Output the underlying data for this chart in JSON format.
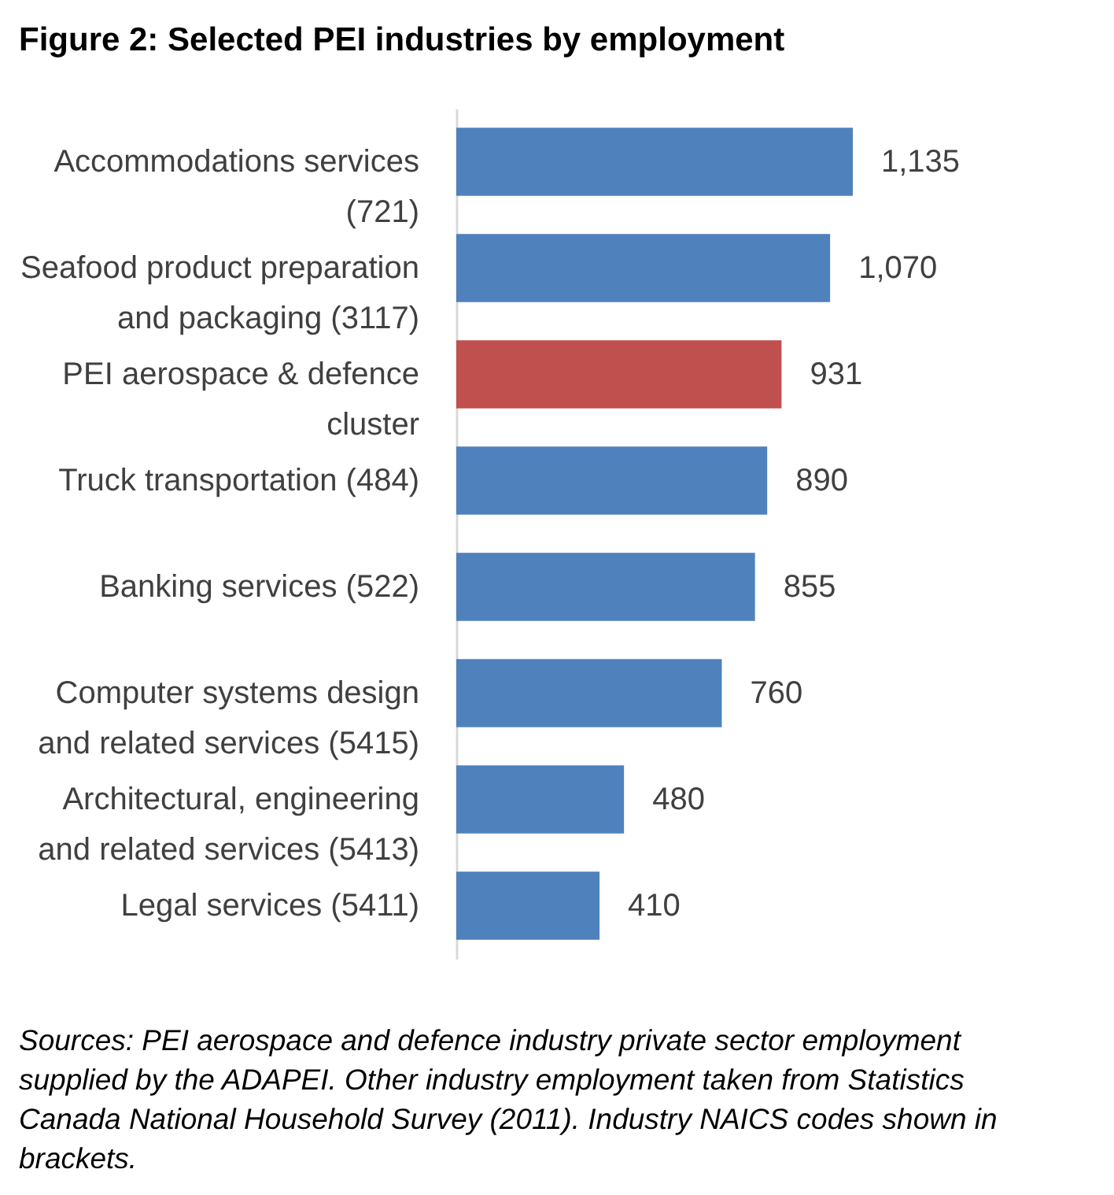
{
  "chart_data": {
    "type": "bar",
    "orientation": "horizontal",
    "title": "Figure 2: Selected PEI industries by employment",
    "categories": [
      "Accommodations services (721)",
      "Seafood product preparation and packaging (3117)",
      "PEI aerospace & defence cluster",
      "Truck transportation (484)",
      "Banking services (522)",
      "Computer systems design and related services (5415)",
      "Architectural, engineering and related services (5413)",
      "Legal services (5411)"
    ],
    "values": [
      1135,
      1070,
      931,
      890,
      855,
      760,
      480,
      410
    ],
    "value_labels": [
      "1,135",
      "1,070",
      "931",
      "890",
      "855",
      "760",
      "480",
      "410"
    ],
    "colors": [
      "#4f81bd",
      "#4f81bd",
      "#c0504d",
      "#4f81bd",
      "#4f81bd",
      "#4f81bd",
      "#4f81bd",
      "#4f81bd"
    ],
    "annotations": [
      "Sources: PEI aerospace and defence industry private sector employment supplied by the ADAPEI. Other industry employment taken from Statistics Canada National Household Survey (2011). Industry NAICS codes shown in brackets."
    ]
  }
}
